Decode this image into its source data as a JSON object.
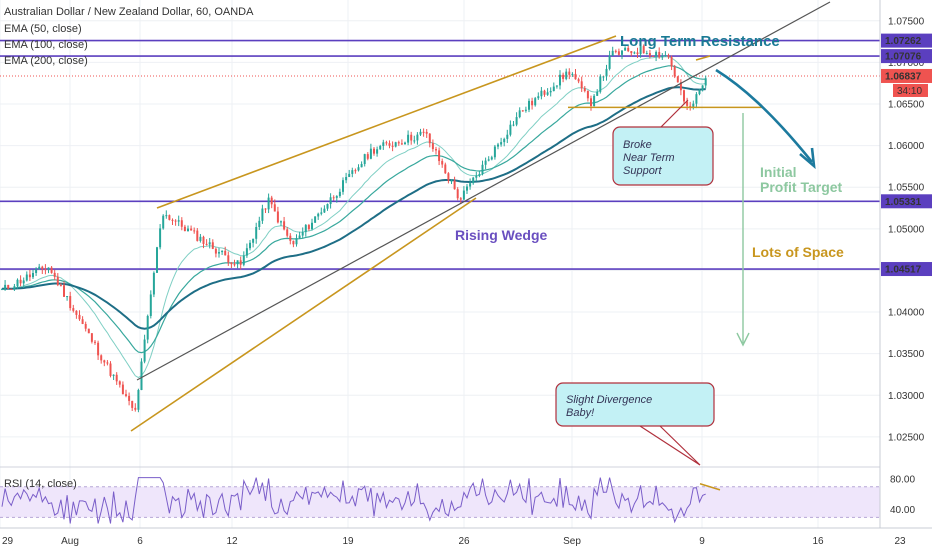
{
  "chart_data": {
    "type": "candlestick",
    "title": "Australian Dollar / New Zealand Dollar, 60, OANDA",
    "indicators": [
      "EMA (50, close)",
      "EMA (100, close)",
      "EMA (200, close)"
    ],
    "y_ticks": [
      "1.07500",
      "1.07000",
      "1.06500",
      "1.06000",
      "1.05500",
      "1.05000",
      "1.04500",
      "1.04000",
      "1.03500",
      "1.03000",
      "1.02500"
    ],
    "ylim": [
      1.0215,
      1.0775
    ],
    "x_ticks": [
      "29",
      "Aug",
      "6",
      "12",
      "19",
      "26",
      "Sep",
      "9",
      "16",
      "23"
    ],
    "price_labels": [
      {
        "value": 1.07262,
        "text": "1.07262"
      },
      {
        "value": 1.07076,
        "text": "1.07076"
      },
      {
        "value": 1.06837,
        "text": "1.06837"
      },
      {
        "value": 1.05331,
        "text": "1.05331"
      },
      {
        "value": 1.04517,
        "text": "1.04517"
      }
    ],
    "countdown": "34:10",
    "key_points": [
      {
        "label": "start",
        "value": 1.0425
      },
      {
        "label": "Aug 2 high",
        "value": 1.0455
      },
      {
        "label": "Aug 5 low",
        "value": 1.0278
      },
      {
        "label": "Aug 7 spike",
        "value": 1.052
      },
      {
        "label": "Aug 12 dip",
        "value": 1.0455
      },
      {
        "label": "Aug 14 high",
        "value": 1.0535
      },
      {
        "label": "Aug 16 dip",
        "value": 1.048
      },
      {
        "label": "Aug 22 high",
        "value": 1.0595
      },
      {
        "label": "Aug 23 high",
        "value": 1.0615
      },
      {
        "label": "Aug 26 low",
        "value": 1.0535
      },
      {
        "label": "Aug 30 high",
        "value": 1.064
      },
      {
        "label": "Sep 1 high",
        "value": 1.069
      },
      {
        "label": "Sep 2 dip",
        "value": 1.065
      },
      {
        "label": "Sep 3 high",
        "value": 1.071
      },
      {
        "label": "Sep 5 high",
        "value": 1.0715
      },
      {
        "label": "Sep 7 high",
        "value": 1.0708
      },
      {
        "label": "Sep 8 low",
        "value": 1.064
      },
      {
        "label": "Sep 9 last",
        "value": 1.0684
      }
    ],
    "annotations": {
      "long_term_resistance": "Long Term Resistance",
      "rising_wedge": "Rising Wedge",
      "broke_support": [
        "Broke",
        "Near Term",
        "Support"
      ],
      "initial_profit_target": [
        "Initial",
        "Profit Target"
      ],
      "lots_of_space": "Lots of Space",
      "divergence": [
        "Slight Divergence",
        "Baby!"
      ]
    },
    "rsi": {
      "label": "RSI (14, close)",
      "ticks": [
        "80.00",
        "40.00"
      ],
      "band": [
        30,
        70
      ],
      "ylim": [
        20,
        92
      ]
    },
    "colors": {
      "up": "#26a69a",
      "down": "#ef5350",
      "ema50": "#7fcfc4",
      "ema100": "#38a89d",
      "ema200": "#1e6e86",
      "wedge": "#c8961e",
      "purple_line": "#5b3fbf",
      "gray_line": "#555555",
      "resistance_text": "#1a7a94",
      "wedge_text": "#6a4fc0",
      "target_text": "#8dc8a0",
      "space_text": "#c8961e",
      "rsi_line": "#7a5ec9",
      "rsi_band": "#efe6fb",
      "callout_fill": "#c3f1f5",
      "callout_border": "#b0303c",
      "down_arrow": "#1c7a9e",
      "space_arrow": "#8dc8a0"
    }
  }
}
